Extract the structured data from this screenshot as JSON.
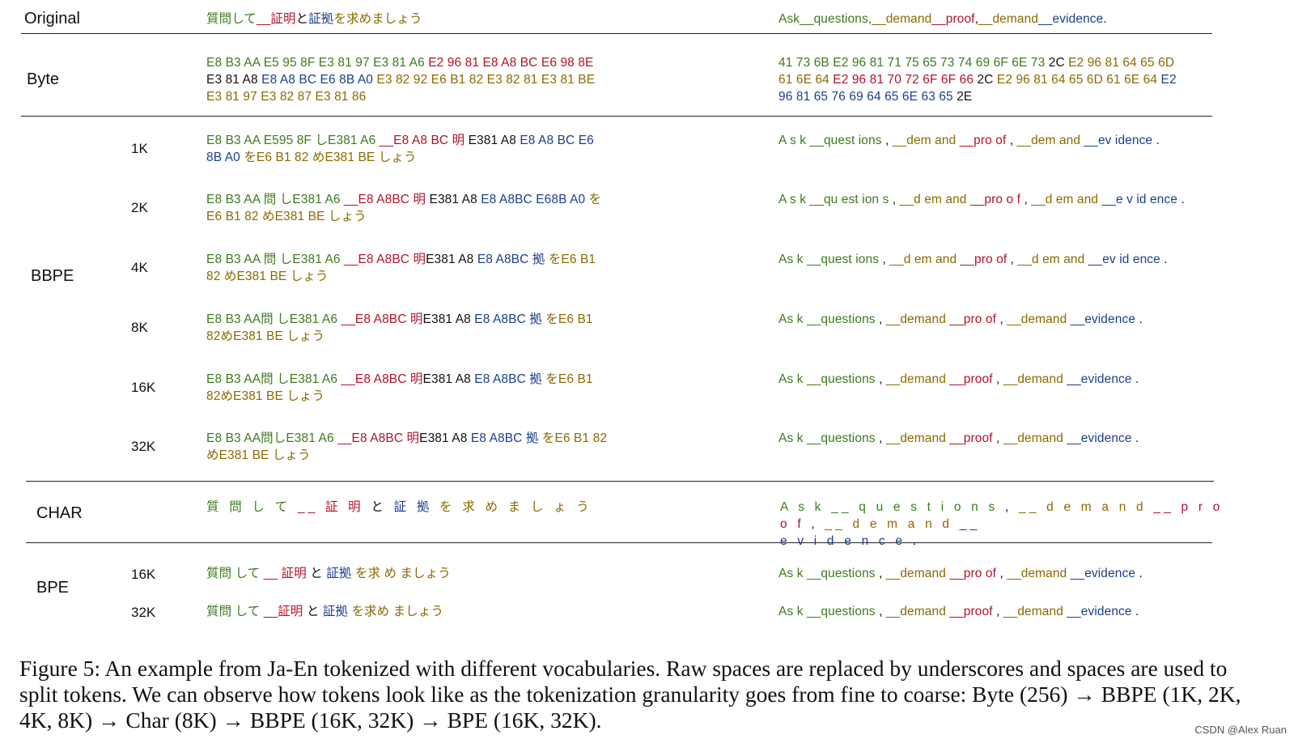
{
  "colors": {
    "g": "#3d7a1f",
    "y": "#8a6a00",
    "r": "#b0142b",
    "b": "#1c3f8c",
    "k": "#111111"
  },
  "original": {
    "label": "Original",
    "ja": [
      [
        "質問して",
        "g"
      ],
      [
        "__証明",
        "r"
      ],
      [
        "と",
        "k"
      ],
      [
        "証拠",
        "b"
      ],
      [
        "を求めましょう",
        "y"
      ]
    ],
    "en": [
      [
        "Ask",
        "g"
      ],
      [
        "__questions,",
        "g"
      ],
      [
        "__demand",
        "y"
      ],
      [
        "__proof",
        "r"
      ],
      [
        ",",
        "k"
      ],
      [
        "__demand",
        "y"
      ],
      [
        "__evidence",
        "b"
      ],
      [
        ".",
        "k"
      ]
    ]
  },
  "byte": {
    "label": "Byte",
    "ja": [
      [
        "E8 B3 AA E5 95 8F E3 81 97 E3 81 A6 ",
        "g"
      ],
      [
        "E2 96 81 E8 A8 BC E6 98 8E",
        "r"
      ],
      [
        "\n",
        "k"
      ],
      [
        "E3 81 A8 ",
        "k"
      ],
      [
        "E8 A8 BC E6 8B A0 ",
        "b"
      ],
      [
        "E3 82 92 E6 B1 82 E3 82 81 E3 81 BE\nE3 81 97 E3 82 87 E3 81 86",
        "y"
      ]
    ],
    "en": [
      [
        "41 73 6B E2 96 81 71 75 65 73 74 69 6F 6E 73 ",
        "g"
      ],
      [
        "2C ",
        "k"
      ],
      [
        "E2 96 81 64 65 6D\n61 6E 64 ",
        "y"
      ],
      [
        "E2 96 81 70 72 6F 6F 66 ",
        "r"
      ],
      [
        "2C ",
        "k"
      ],
      [
        "E2 96 81 64 65 6D 61 6E 64 ",
        "y"
      ],
      [
        "E2\n96 81 65 76 69 64 65 6E 63 65 ",
        "b"
      ],
      [
        "2E",
        "k"
      ]
    ]
  },
  "bbpe": {
    "label": "BBPE",
    "rows": [
      {
        "vocab": "1K",
        "ja": [
          [
            "E8 B3 AA E595 8F しE381 A6 ",
            "g"
          ],
          [
            "__E8 A8 BC 明 ",
            "r"
          ],
          [
            "E381 A8 ",
            "k"
          ],
          [
            "E8 A8 BC E6\n8B A0 ",
            "b"
          ],
          [
            "をE6 B1 82 めE381 BE しょう",
            "y"
          ]
        ],
        "en": [
          [
            "A s k __quest ions ",
            "g"
          ],
          [
            ", ",
            "k"
          ],
          [
            "__dem and ",
            "y"
          ],
          [
            "__pro of ",
            "r"
          ],
          [
            ", ",
            "k"
          ],
          [
            "__dem and ",
            "y"
          ],
          [
            "__ev idence ",
            "b"
          ],
          [
            ".",
            "k"
          ]
        ]
      },
      {
        "vocab": "2K",
        "ja": [
          [
            "E8 B3 AA 問 しE381 A6 ",
            "g"
          ],
          [
            "__E8 A8BC 明 ",
            "r"
          ],
          [
            "E381 A8 ",
            "k"
          ],
          [
            "E8 A8BC E68B A0 ",
            "b"
          ],
          [
            "を\nE6 B1 82 めE381 BE しょう",
            "y"
          ]
        ],
        "en": [
          [
            "A s k __qu est ion s ",
            "g"
          ],
          [
            ", ",
            "k"
          ],
          [
            "__d em and ",
            "y"
          ],
          [
            "__pro o f ",
            "r"
          ],
          [
            ", ",
            "k"
          ],
          [
            "__d em and ",
            "y"
          ],
          [
            "__e v id ence ",
            "b"
          ],
          [
            ".",
            "k"
          ]
        ]
      },
      {
        "vocab": "4K",
        "ja": [
          [
            "E8 B3 AA 問 しE381 A6 ",
            "g"
          ],
          [
            "__E8 A8BC 明",
            "r"
          ],
          [
            "E381 A8 ",
            "k"
          ],
          [
            "E8 A8BC 拠 ",
            "b"
          ],
          [
            "をE6 B1\n82 めE381 BE しょう",
            "y"
          ]
        ],
        "en": [
          [
            "As k __quest ions ",
            "g"
          ],
          [
            ", ",
            "k"
          ],
          [
            "__d em and ",
            "y"
          ],
          [
            "__pro of ",
            "r"
          ],
          [
            ", ",
            "k"
          ],
          [
            "__d em and ",
            "y"
          ],
          [
            "__ev id ence ",
            "b"
          ],
          [
            ".",
            "k"
          ]
        ]
      },
      {
        "vocab": "8K",
        "ja": [
          [
            "E8 B3 AA問 しE381 A6 ",
            "g"
          ],
          [
            "__E8 A8BC 明",
            "r"
          ],
          [
            "E381 A8 ",
            "k"
          ],
          [
            "E8 A8BC 拠 ",
            "b"
          ],
          [
            "をE6 B1\n82めE381 BE しょう",
            "y"
          ]
        ],
        "en": [
          [
            "As k __questions ",
            "g"
          ],
          [
            ", ",
            "k"
          ],
          [
            "__demand ",
            "y"
          ],
          [
            "__pro of ",
            "r"
          ],
          [
            ", ",
            "k"
          ],
          [
            "__demand ",
            "y"
          ],
          [
            "__evidence ",
            "b"
          ],
          [
            ".",
            "k"
          ]
        ]
      },
      {
        "vocab": "16K",
        "ja": [
          [
            "E8 B3 AA問 しE381 A6 ",
            "g"
          ],
          [
            "__E8 A8BC 明",
            "r"
          ],
          [
            "E381 A8 ",
            "k"
          ],
          [
            "E8 A8BC 拠 ",
            "b"
          ],
          [
            "をE6 B1\n82めE381 BE しょう",
            "y"
          ]
        ],
        "en": [
          [
            "As k __questions ",
            "g"
          ],
          [
            ", ",
            "k"
          ],
          [
            "__demand ",
            "y"
          ],
          [
            "__proof ",
            "r"
          ],
          [
            ", ",
            "k"
          ],
          [
            "__demand ",
            "y"
          ],
          [
            "__evidence ",
            "b"
          ],
          [
            ".",
            "k"
          ]
        ]
      },
      {
        "vocab": "32K",
        "ja": [
          [
            "E8 B3 AA問しE381 A6 ",
            "g"
          ],
          [
            "__E8 A8BC 明",
            "r"
          ],
          [
            "E381 A8 ",
            "k"
          ],
          [
            "E8 A8BC 拠 ",
            "b"
          ],
          [
            "をE6 B1 82\nめE381 BE しょう",
            "y"
          ]
        ],
        "en": [
          [
            "As k __questions ",
            "g"
          ],
          [
            ", ",
            "k"
          ],
          [
            "__demand ",
            "y"
          ],
          [
            "__proof ",
            "r"
          ],
          [
            ", ",
            "k"
          ],
          [
            "__demand ",
            "y"
          ],
          [
            "__evidence ",
            "b"
          ],
          [
            ".",
            "k"
          ]
        ]
      }
    ]
  },
  "char": {
    "label": "CHAR",
    "ja": [
      [
        "質 問 し て ",
        "g"
      ],
      [
        "__ 証 明 ",
        "r"
      ],
      [
        "と ",
        "k"
      ],
      [
        "証 拠 ",
        "b"
      ],
      [
        "を 求 め ま し ょ う",
        "y"
      ]
    ],
    "en": [
      [
        "A s k __ q u e s t i o n s ",
        "g"
      ],
      [
        ", ",
        "k"
      ],
      [
        "__ d e m a n d ",
        "y"
      ],
      [
        "__ p r o o f ",
        "r"
      ],
      [
        ", ",
        "k"
      ],
      [
        "__ d e m a n d ",
        "y"
      ],
      [
        "__\ne v i d e n c e ",
        "b"
      ],
      [
        ".",
        "k"
      ]
    ]
  },
  "bpe": {
    "label": "BPE",
    "rows": [
      {
        "vocab": "16K",
        "ja": [
          [
            "質問 して ",
            "g"
          ],
          [
            "__ 証明 ",
            "r"
          ],
          [
            "と ",
            "k"
          ],
          [
            "証拠 ",
            "b"
          ],
          [
            "を求 め ましょう",
            "y"
          ]
        ],
        "en": [
          [
            "As k __questions ",
            "g"
          ],
          [
            ", ",
            "k"
          ],
          [
            "__demand ",
            "y"
          ],
          [
            "__pro of ",
            "r"
          ],
          [
            ", ",
            "k"
          ],
          [
            "__demand ",
            "y"
          ],
          [
            "__evidence ",
            "b"
          ],
          [
            ".",
            "k"
          ]
        ]
      },
      {
        "vocab": "32K",
        "ja": [
          [
            "質問 して ",
            "g"
          ],
          [
            "__証明 ",
            "r"
          ],
          [
            "と ",
            "k"
          ],
          [
            "証拠 ",
            "b"
          ],
          [
            "を求め ましょう",
            "y"
          ]
        ],
        "en": [
          [
            "As k __questions ",
            "g"
          ],
          [
            ", ",
            "k"
          ],
          [
            "__demand ",
            "y"
          ],
          [
            "__proof ",
            "r"
          ],
          [
            ", ",
            "k"
          ],
          [
            "__demand ",
            "y"
          ],
          [
            "__evidence ",
            "b"
          ],
          [
            ".",
            "k"
          ]
        ]
      }
    ]
  },
  "caption": "Figure 5: An example from Ja-En tokenized with different vocabularies. Raw spaces are replaced by underscores and spaces are used to split tokens. We can observe how tokens look like as the tokenization granularity goes from fine to coarse: Byte (256) → BBPE (1K, 2K, 4K, 8K) → Char (8K) → BBPE (16K, 32K) → BPE (16K, 32K).",
  "watermark": "CSDN @Alex Ruan"
}
